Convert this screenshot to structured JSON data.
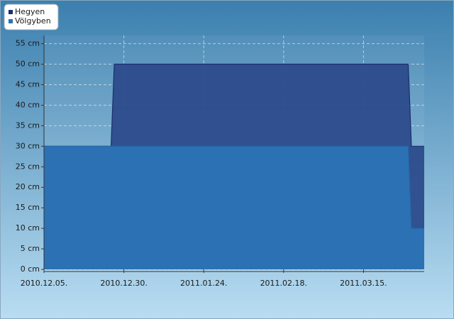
{
  "chart_data": {
    "type": "area",
    "x": [
      "2010-12-05",
      "2010-12-26",
      "2010-12-27",
      "2011-03-29",
      "2011-03-30",
      "2011-04-03"
    ],
    "series": [
      {
        "name": "Hegyen",
        "color": "#2c4b8c",
        "values": [
          30,
          30,
          50,
          50,
          30,
          30
        ]
      },
      {
        "name": "Völgyben",
        "color": "#2b73b6",
        "values": [
          30,
          30,
          30,
          30,
          10,
          10
        ]
      }
    ],
    "xlim": [
      "2010-12-05",
      "2011-04-03"
    ],
    "xticks": [
      {
        "value": "2010-12-05",
        "label": "2010.12.05."
      },
      {
        "value": "2010-12-30",
        "label": "2010.12.30."
      },
      {
        "value": "2011-01-24",
        "label": "2011.01.24."
      },
      {
        "value": "2011-02-18",
        "label": "2011.02.18."
      },
      {
        "value": "2011-03-15",
        "label": "2011.03.15."
      }
    ],
    "ylim": [
      0,
      57
    ],
    "yticks": [
      {
        "value": 0,
        "label": "0 cm"
      },
      {
        "value": 5,
        "label": "5 cm"
      },
      {
        "value": 10,
        "label": "10 cm"
      },
      {
        "value": 15,
        "label": "15 cm"
      },
      {
        "value": 20,
        "label": "20 cm"
      },
      {
        "value": 25,
        "label": "25 cm"
      },
      {
        "value": 30,
        "label": "30 cm"
      },
      {
        "value": 35,
        "label": "35 cm"
      },
      {
        "value": 40,
        "label": "40 cm"
      },
      {
        "value": 45,
        "label": "45 cm"
      },
      {
        "value": 50,
        "label": "50 cm"
      },
      {
        "value": 55,
        "label": "55 cm"
      }
    ],
    "grid": true,
    "legend": "top-left"
  }
}
